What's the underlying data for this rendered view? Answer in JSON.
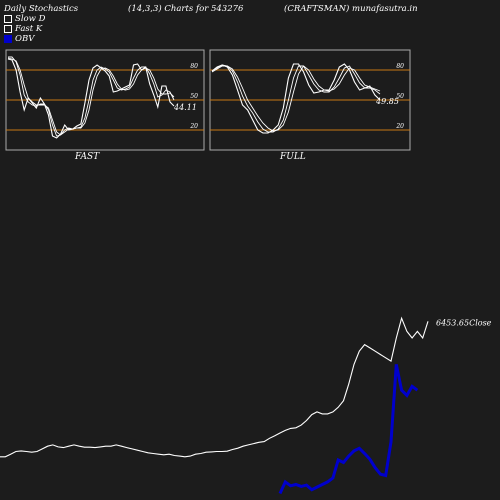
{
  "header": {
    "left": "Daily Stochastics",
    "params": "(14,3,3) Charts for 543276",
    "ticker": "(CRAFTSMAN) munafasutra.in"
  },
  "legend": [
    {
      "label": "Slow  D",
      "color": "#ffffff"
    },
    {
      "label": "Fast K",
      "color": "#ffffff"
    },
    {
      "label": "OBV",
      "color": "#0000cc"
    }
  ],
  "chart_data": [
    {
      "type": "line",
      "title": "FAST",
      "ylim": [
        0,
        100
      ],
      "yticks": [
        20,
        50,
        80
      ],
      "band_levels": [
        20,
        50,
        80
      ],
      "last_value_label": "44.11",
      "series": [
        {
          "values": [
            91,
            90,
            80,
            58,
            40,
            52,
            47,
            42,
            52,
            46,
            35,
            14,
            12,
            16,
            25,
            20,
            21,
            24,
            26,
            47,
            70,
            82,
            85,
            82,
            79,
            74,
            58,
            59,
            61,
            63,
            65,
            85,
            86,
            80,
            83,
            66,
            55,
            43,
            64,
            64,
            48,
            44
          ]
        },
        {
          "values": [
            93,
            93,
            88,
            75,
            55,
            48,
            45,
            44,
            46,
            46,
            40,
            25,
            14,
            15,
            20,
            22,
            21,
            22,
            23,
            32,
            50,
            70,
            80,
            83,
            81,
            78,
            70,
            62,
            60,
            61,
            63,
            72,
            80,
            83,
            83,
            76,
            66,
            53,
            55,
            60,
            58,
            50
          ]
        },
        {
          "values": [
            92,
            91,
            89,
            80,
            65,
            52,
            48,
            45,
            45,
            45,
            42,
            30,
            18,
            15,
            18,
            21,
            21,
            22,
            22,
            27,
            40,
            60,
            74,
            81,
            82,
            80,
            74,
            66,
            61,
            60,
            61,
            66,
            75,
            80,
            82,
            80,
            72,
            61,
            56,
            56,
            57,
            53
          ]
        }
      ]
    },
    {
      "type": "line",
      "title": "FULL",
      "ylim": [
        0,
        100
      ],
      "yticks": [
        20,
        50,
        80
      ],
      "band_levels": [
        20,
        50,
        80
      ],
      "last_value_label": "49.85",
      "series": [
        {
          "values": [
            79,
            83,
            85,
            83,
            75,
            60,
            45,
            40,
            30,
            20,
            17,
            17,
            20,
            25,
            42,
            72,
            86,
            86,
            78,
            65,
            57,
            58,
            60,
            60,
            70,
            83,
            86,
            80,
            68,
            60,
            62,
            64,
            55,
            50
          ]
        },
        {
          "values": [
            79,
            82,
            85,
            84,
            79,
            68,
            54,
            44,
            37,
            28,
            21,
            18,
            18,
            21,
            30,
            50,
            72,
            84,
            84,
            75,
            66,
            60,
            58,
            58,
            63,
            72,
            82,
            84,
            76,
            67,
            62,
            62,
            60,
            56
          ]
        },
        {
          "values": [
            78,
            81,
            84,
            84,
            81,
            73,
            62,
            50,
            42,
            34,
            27,
            22,
            19,
            20,
            25,
            38,
            58,
            76,
            84,
            80,
            71,
            64,
            60,
            59,
            61,
            66,
            75,
            82,
            80,
            72,
            65,
            63,
            61,
            59
          ]
        }
      ]
    },
    {
      "type": "line",
      "series_labels": {
        "close": "6453.65Close"
      },
      "series": [
        {
          "name": "Close",
          "values": [
            4400,
            4400,
            4440,
            4480,
            4490,
            4480,
            4470,
            4480,
            4520,
            4560,
            4580,
            4550,
            4540,
            4560,
            4580,
            4560,
            4545,
            4545,
            4540,
            4550,
            4560,
            4560,
            4580,
            4560,
            4540,
            4520,
            4500,
            4480,
            4460,
            4450,
            4440,
            4430,
            4440,
            4420,
            4410,
            4400,
            4410,
            4440,
            4450,
            4470,
            4475,
            4480,
            4480,
            4485,
            4510,
            4530,
            4560,
            4580,
            4600,
            4620,
            4630,
            4680,
            4720,
            4760,
            4800,
            4830,
            4840,
            4880,
            4950,
            5040,
            5080,
            5050,
            5050,
            5080,
            5150,
            5250,
            5500,
            5800,
            6000,
            6100,
            6050,
            6000,
            5950,
            5900,
            5850,
            6200,
            6500,
            6300,
            6200,
            6300,
            6200,
            6453.65
          ]
        },
        {
          "name": "OBV",
          "values": [
            null,
            null,
            null,
            null,
            null,
            null,
            null,
            null,
            null,
            null,
            null,
            null,
            null,
            null,
            null,
            null,
            null,
            null,
            null,
            null,
            null,
            null,
            null,
            null,
            null,
            null,
            null,
            null,
            null,
            null,
            null,
            null,
            null,
            null,
            null,
            null,
            null,
            null,
            null,
            null,
            null,
            null,
            null,
            null,
            null,
            null,
            null,
            null,
            null,
            null,
            null,
            null,
            null,
            -100,
            80,
            20,
            40,
            10,
            30,
            -40,
            0,
            40,
            80,
            140,
            420,
            380,
            480,
            560,
            600,
            520,
            430,
            300,
            200,
            180,
            700,
            1900,
            1500,
            1420,
            1560,
            1500
          ]
        }
      ]
    }
  ],
  "colors": {
    "background": "#1c1c1c",
    "line": "#ffffff",
    "band": "#c87814",
    "obv": "#0000cc"
  }
}
